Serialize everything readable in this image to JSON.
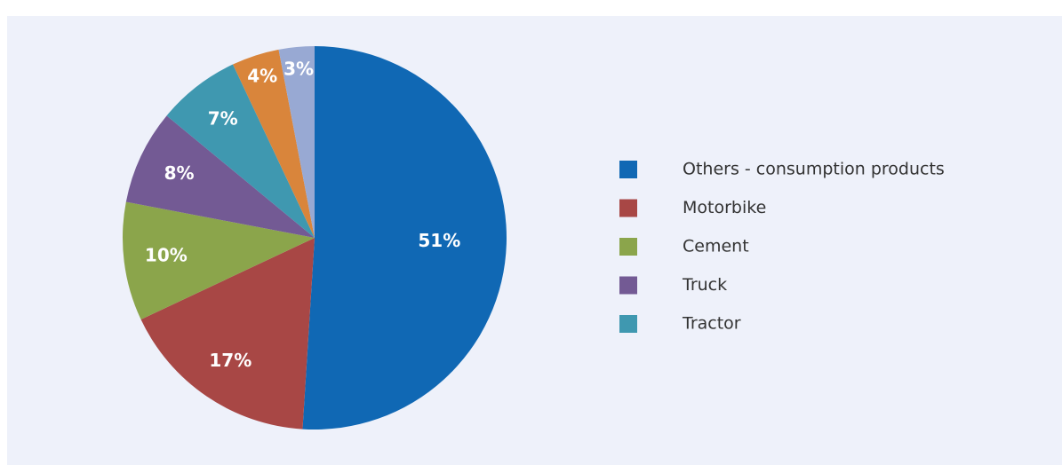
{
  "chart_data": {
    "type": "pie",
    "categories": [
      "Others - consumption products",
      "Motorbike",
      "Cement",
      "Truck",
      "Tractor",
      null,
      null
    ],
    "values": [
      51,
      17,
      10,
      8,
      7,
      4,
      3
    ],
    "value_labels": [
      "51%",
      "17%",
      "10%",
      "8%",
      "7%",
      "4%",
      "3%"
    ],
    "colors": [
      "#1068b4",
      "#a84745",
      "#8ba54b",
      "#735a94",
      "#3f98b0",
      "#d9853b",
      "#98a9d3"
    ],
    "legend": "right"
  }
}
